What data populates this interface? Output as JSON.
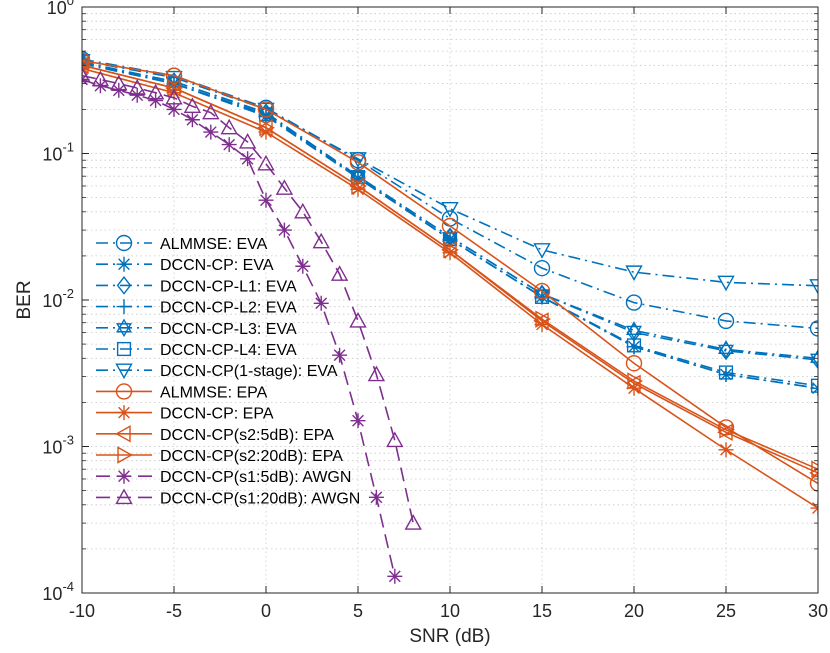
{
  "chart_data": {
    "type": "line",
    "title": "",
    "xlabel": "SNR (dB)",
    "ylabel": "BER",
    "xlim": [
      -10,
      30
    ],
    "ylim": [
      0.0001,
      1
    ],
    "yscale": "log",
    "grid": true,
    "legend_position": "lower-left",
    "x_ticks": [
      -10,
      -5,
      0,
      5,
      10,
      15,
      20,
      25,
      30
    ],
    "x_tick_labels": [
      "-10",
      "-5",
      "0",
      "5",
      "10",
      "15",
      "20",
      "25",
      "30"
    ],
    "y_ticks": [
      1,
      0.1,
      0.01,
      0.001,
      0.0001
    ],
    "y_tick_labels": [
      {
        "base": "10",
        "exp": "0"
      },
      {
        "base": "10",
        "exp": "-1"
      },
      {
        "base": "10",
        "exp": "-2"
      },
      {
        "base": "10",
        "exp": "-3"
      },
      {
        "base": "10",
        "exp": "-4"
      }
    ],
    "series": [
      {
        "name": "ALMMSE: EVA",
        "color": "#0072BD",
        "dash": "dashdot",
        "marker": "circle",
        "x": [
          -10,
          -5,
          0,
          5,
          10,
          15,
          20,
          25,
          30
        ],
        "y": [
          0.44,
          0.34,
          0.205,
          0.09,
          0.036,
          0.0165,
          0.0096,
          0.0072,
          0.0064
        ]
      },
      {
        "name": "DCCN-CP: EVA",
        "color": "#0072BD",
        "dash": "dashdot",
        "marker": "asterisk",
        "x": [
          -10,
          -5,
          0,
          5,
          10,
          15,
          20,
          25,
          30
        ],
        "y": [
          0.41,
          0.3,
          0.18,
          0.068,
          0.026,
          0.0105,
          0.0048,
          0.0031,
          0.0025
        ]
      },
      {
        "name": "DCCN-CP-L1: EVA",
        "color": "#0072BD",
        "dash": "dashdot",
        "marker": "diamond",
        "x": [
          -10,
          -5,
          0,
          5,
          10,
          15,
          20,
          25,
          30
        ],
        "y": [
          0.42,
          0.31,
          0.19,
          0.07,
          0.027,
          0.011,
          0.006,
          0.0045,
          0.0039
        ]
      },
      {
        "name": "DCCN-CP-L2: EVA",
        "color": "#0072BD",
        "dash": "dashdot",
        "marker": "plus",
        "x": [
          -10,
          -5,
          0,
          5,
          10,
          15,
          20,
          25,
          30
        ],
        "y": [
          0.42,
          0.3,
          0.185,
          0.068,
          0.026,
          0.0105,
          0.0048,
          0.0031,
          0.0025
        ]
      },
      {
        "name": "DCCN-CP-L3: EVA",
        "color": "#0072BD",
        "dash": "dashdot",
        "marker": "hexagram",
        "x": [
          -10,
          -5,
          0,
          5,
          10,
          15,
          20,
          25,
          30
        ],
        "y": [
          0.42,
          0.31,
          0.19,
          0.07,
          0.027,
          0.011,
          0.0062,
          0.0046,
          0.004
        ]
      },
      {
        "name": "DCCN-CP-L4: EVA",
        "color": "#0072BD",
        "dash": "dashdot",
        "marker": "square",
        "x": [
          -10,
          -5,
          0,
          5,
          10,
          15,
          20,
          25,
          30
        ],
        "y": [
          0.42,
          0.3,
          0.185,
          0.069,
          0.026,
          0.0105,
          0.0049,
          0.0032,
          0.0026
        ]
      },
      {
        "name": "DCCN-CP(1-stage): EVA",
        "color": "#0072BD",
        "dash": "dashdot",
        "marker": "triangle-down",
        "x": [
          -10,
          -5,
          0,
          5,
          10,
          15,
          20,
          25,
          30
        ],
        "y": [
          0.43,
          0.33,
          0.2,
          0.092,
          0.042,
          0.022,
          0.0155,
          0.0132,
          0.0125
        ]
      },
      {
        "name": "ALMMSE: EPA",
        "color": "#D95319",
        "dash": "solid",
        "marker": "circle",
        "x": [
          -10,
          -5,
          0,
          5,
          10,
          15,
          20,
          25,
          30
        ],
        "y": [
          0.43,
          0.34,
          0.2,
          0.087,
          0.032,
          0.0115,
          0.0037,
          0.00135,
          0.00056
        ]
      },
      {
        "name": "DCCN-CP: EPA",
        "color": "#D95319",
        "dash": "solid",
        "marker": "asterisk",
        "x": [
          -10,
          -5,
          0,
          5,
          10,
          15,
          20,
          25,
          30
        ],
        "y": [
          0.38,
          0.26,
          0.14,
          0.057,
          0.021,
          0.0068,
          0.0025,
          0.00095,
          0.00038
        ]
      },
      {
        "name": "DCCN-CP(s2:5dB): EPA",
        "color": "#D95319",
        "dash": "solid",
        "marker": "triangle-left",
        "x": [
          -10,
          -5,
          0,
          5,
          10,
          15,
          20,
          25,
          30
        ],
        "y": [
          0.4,
          0.28,
          0.15,
          0.06,
          0.022,
          0.0072,
          0.0027,
          0.00125,
          0.00066
        ]
      },
      {
        "name": "DCCN-CP(s2:20dB): EPA",
        "color": "#D95319",
        "dash": "solid",
        "marker": "triangle-right",
        "x": [
          -10,
          -5,
          0,
          5,
          10,
          15,
          20,
          25,
          30
        ],
        "y": [
          0.4,
          0.28,
          0.15,
          0.06,
          0.022,
          0.0074,
          0.0028,
          0.0013,
          0.0007
        ]
      },
      {
        "name": "DCCN-CP(s1:5dB): AWGN",
        "color": "#7E2F8E",
        "dash": "dashed",
        "marker": "asterisk",
        "x": [
          -10,
          -9,
          -8,
          -7,
          -6,
          -5,
          -4,
          -3,
          -2,
          -1,
          0,
          1,
          2,
          3,
          4,
          5,
          6,
          7
        ],
        "y": [
          0.32,
          0.29,
          0.27,
          0.25,
          0.23,
          0.2,
          0.17,
          0.14,
          0.115,
          0.092,
          0.048,
          0.03,
          0.017,
          0.0095,
          0.0042,
          0.0015,
          0.00045,
          0.00013
        ]
      },
      {
        "name": "DCCN-CP(s1:20dB): AWGN",
        "color": "#7E2F8E",
        "dash": "dashed",
        "marker": "triangle-up",
        "x": [
          -10,
          -9,
          -8,
          -7,
          -6,
          -5,
          -4,
          -3,
          -2,
          -1,
          0,
          1,
          2,
          3,
          4,
          5,
          6,
          7,
          8
        ],
        "y": [
          0.34,
          0.32,
          0.3,
          0.28,
          0.26,
          0.24,
          0.21,
          0.19,
          0.15,
          0.12,
          0.085,
          0.058,
          0.04,
          0.025,
          0.015,
          0.0072,
          0.0031,
          0.0011,
          0.0003
        ]
      }
    ]
  }
}
